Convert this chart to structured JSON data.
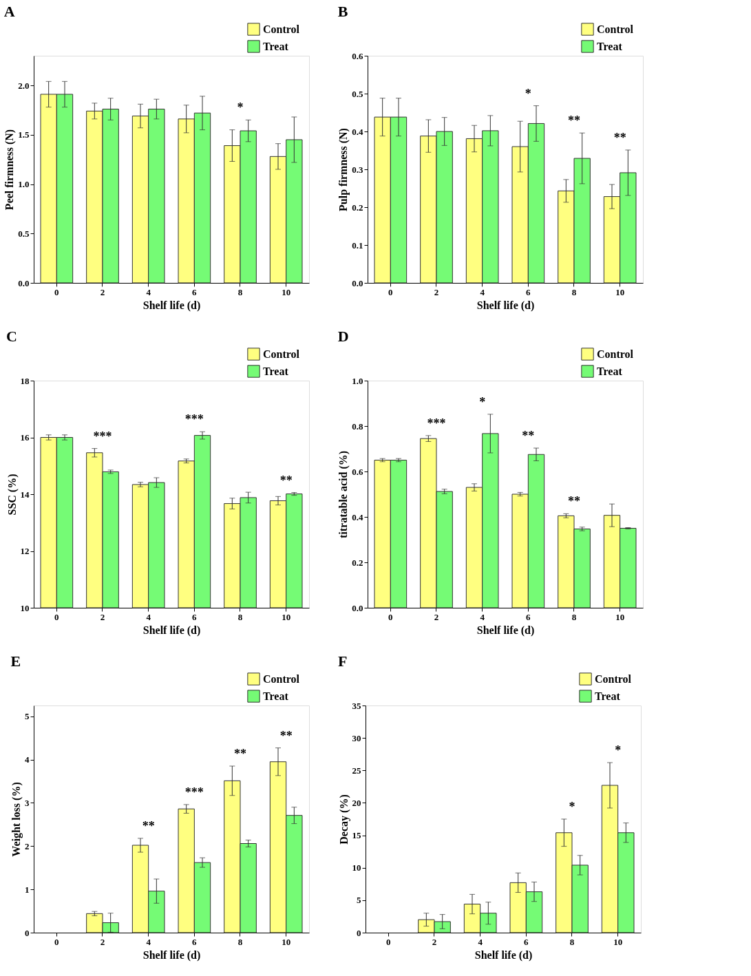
{
  "chart_data": [
    {
      "type": "bar",
      "title": "A",
      "xlabel": "Shelf life (d)",
      "ylabel": "Peel firmness (N)",
      "categories": [
        "0",
        "2",
        "4",
        "6",
        "8",
        "10"
      ],
      "ylim": [
        0,
        2.3
      ],
      "yticks": [
        {
          "value": 0,
          "label": "0.0"
        },
        {
          "value": 0.5,
          "label": "0.5"
        },
        {
          "value": 1,
          "label": "1.0"
        },
        {
          "value": 1.5,
          "label": "1.5"
        },
        {
          "value": 2,
          "label": "2.0"
        }
      ],
      "legend": "top right",
      "series": [
        {
          "name": "Control",
          "color": "#ffff80",
          "values": [
            1.91,
            1.74,
            1.69,
            1.66,
            1.39,
            1.28
          ],
          "errors": [
            0.13,
            0.08,
            0.12,
            0.14,
            0.16,
            0.13
          ]
        },
        {
          "name": "Treat",
          "color": "#75fb75",
          "values": [
            1.91,
            1.76,
            1.76,
            1.72,
            1.54,
            1.45
          ],
          "errors": [
            0.13,
            0.11,
            0.1,
            0.17,
            0.11,
            0.23
          ]
        }
      ],
      "annotations": [
        {
          "text": "*",
          "x": "8",
          "y": 1.54
        }
      ]
    },
    {
      "type": "bar",
      "title": "B",
      "xlabel": "Shelf life (d)",
      "ylabel": "Pulp firmness (N)",
      "categories": [
        "0",
        "2",
        "4",
        "6",
        "8",
        "10"
      ],
      "ylim": [
        0,
        0.6
      ],
      "yticks": [
        {
          "value": 0,
          "label": "0.0"
        },
        0.1,
        0.2,
        0.3,
        0.4,
        0.5,
        0.6
      ],
      "legend": "top right",
      "series": [
        {
          "name": "Control",
          "color": "#ffff80",
          "values": [
            0.438,
            0.388,
            0.381,
            0.36,
            0.243,
            0.228
          ],
          "errors": [
            0.05,
            0.043,
            0.035,
            0.067,
            0.03,
            0.032
          ]
        },
        {
          "name": "Treat",
          "color": "#75fb75",
          "values": [
            0.438,
            0.4,
            0.402,
            0.421,
            0.329,
            0.291
          ],
          "errors": [
            0.05,
            0.037,
            0.04,
            0.047,
            0.067,
            0.06
          ]
        }
      ],
      "annotations": [
        {
          "text": "*",
          "x": "6",
          "y": 0.421
        },
        {
          "text": "**",
          "x": "8",
          "y": 0.329
        },
        {
          "text": "**",
          "x": "10",
          "y": 0.291
        }
      ]
    },
    {
      "type": "bar",
      "title": "C",
      "xlabel": "Shelf life (d)",
      "ylabel": "SSC (%)",
      "categories": [
        "0",
        "2",
        "4",
        "6",
        "8",
        "10"
      ],
      "ylim": [
        10,
        18
      ],
      "yticks": [
        10,
        12,
        14,
        16,
        18
      ],
      "legend": "top right",
      "series": [
        {
          "name": "Control",
          "color": "#ffff80",
          "values": [
            16.0,
            15.46,
            14.34,
            15.17,
            13.67,
            13.77
          ],
          "errors": [
            0.09,
            0.15,
            0.08,
            0.07,
            0.19,
            0.15
          ]
        },
        {
          "name": "Treat",
          "color": "#75fb75",
          "values": [
            16.0,
            14.79,
            14.41,
            16.07,
            13.88,
            14.01
          ],
          "errors": [
            0.09,
            0.06,
            0.17,
            0.13,
            0.19,
            0.05
          ]
        }
      ],
      "annotations": [
        {
          "text": "***",
          "x": "2",
          "y": 15.46
        },
        {
          "text": "***",
          "x": "6",
          "y": 16.07
        },
        {
          "text": "**",
          "x": "10",
          "y": 14.01
        }
      ]
    },
    {
      "type": "bar",
      "title": "D",
      "xlabel": "Shelf life (d)",
      "ylabel": "titratable acid (%)",
      "categories": [
        "0",
        "2",
        "4",
        "6",
        "8",
        "10"
      ],
      "ylim": [
        0,
        1.0
      ],
      "yticks": [
        {
          "value": 0,
          "label": "0.0"
        },
        0.2,
        0.4,
        0.6,
        0.8,
        {
          "value": 1,
          "label": "1.0"
        }
      ],
      "legend": "top right",
      "series": [
        {
          "name": "Control",
          "color": "#ffff80",
          "values": [
            0.65,
            0.745,
            0.53,
            0.5,
            0.405,
            0.407
          ],
          "errors": [
            0.007,
            0.013,
            0.016,
            0.008,
            0.009,
            0.05
          ]
        },
        {
          "name": "Treat",
          "color": "#75fb75",
          "values": [
            0.65,
            0.512,
            0.767,
            0.675,
            0.347,
            0.35
          ],
          "errors": [
            0.007,
            0.01,
            0.085,
            0.028,
            0.008,
            0.003
          ]
        }
      ],
      "annotations": [
        {
          "text": "***",
          "x": "2",
          "y": 0.745
        },
        {
          "text": "*",
          "x": "4",
          "y": 0.767
        },
        {
          "text": "**",
          "x": "6",
          "y": 0.675
        },
        {
          "text": "**",
          "x": "8",
          "y": 0.405
        }
      ]
    },
    {
      "type": "bar",
      "title": "E",
      "xlabel": "Shelf life (d)",
      "ylabel": "Weight loss (%)",
      "categories": [
        "0",
        "2",
        "4",
        "6",
        "8",
        "10"
      ],
      "ylim": [
        0,
        5.25
      ],
      "yticks": [
        0,
        1,
        2,
        3,
        4,
        5
      ],
      "legend": "top right",
      "series": [
        {
          "name": "Control",
          "color": "#ffff80",
          "values": [
            null,
            0.44,
            2.02,
            2.86,
            3.51,
            3.95
          ],
          "errors": [
            null,
            0.05,
            0.16,
            0.1,
            0.34,
            0.32
          ]
        },
        {
          "name": "Treat",
          "color": "#75fb75",
          "values": [
            null,
            0.23,
            0.96,
            1.62,
            2.06,
            2.71
          ],
          "errors": [
            null,
            0.22,
            0.28,
            0.11,
            0.08,
            0.19
          ]
        }
      ],
      "annotations": [
        {
          "text": "**",
          "x": "4",
          "y": 2.02
        },
        {
          "text": "***",
          "x": "6",
          "y": 2.86
        },
        {
          "text": "**",
          "x": "8",
          "y": 3.51
        },
        {
          "text": "**",
          "x": "10",
          "y": 3.95
        }
      ]
    },
    {
      "type": "bar",
      "title": "F",
      "xlabel": "Shelf life (d)",
      "ylabel": "Decay (%)",
      "categories": [
        "0",
        "2",
        "4",
        "6",
        "8",
        "10"
      ],
      "ylim": [
        0,
        35
      ],
      "yticks": [
        0,
        5,
        10,
        15,
        20,
        25,
        30,
        35
      ],
      "legend": "top right",
      "series": [
        {
          "name": "Control",
          "color": "#ffff80",
          "values": [
            null,
            2.0,
            4.4,
            7.7,
            15.4,
            22.7
          ],
          "errors": [
            null,
            1.0,
            1.5,
            1.5,
            2.1,
            3.5
          ]
        },
        {
          "name": "Treat",
          "color": "#75fb75",
          "values": [
            null,
            1.7,
            3.0,
            6.3,
            10.4,
            15.4
          ],
          "errors": [
            null,
            1.1,
            1.7,
            1.5,
            1.5,
            1.5
          ]
        }
      ],
      "annotations": [
        {
          "text": "*",
          "x": "8",
          "y": 15.4
        },
        {
          "text": "*",
          "x": "10",
          "y": 22.7
        }
      ]
    }
  ]
}
